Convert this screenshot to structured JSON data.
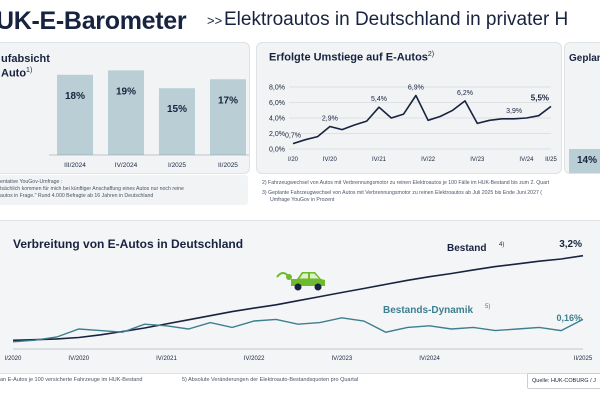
{
  "header": {
    "title": "UK-E-Barometer",
    "separator": ">>",
    "subtitle": "Elektroautos in Deutschland in privater H"
  },
  "panel_purchase": {
    "title_line1": "ufabsicht",
    "title_line2": "Auto",
    "title_sup": "1)"
  },
  "panel_switch": {
    "title": "Erfolgte Umstiege auf E-Autos",
    "title_sup": "2)"
  },
  "panel_planned": {
    "title": "Geplant",
    "value_label": "14%"
  },
  "panel_spread": {
    "title": "Verbreitung von E-Autos in Deutschland"
  },
  "notes": {
    "n1_line1": "entative YouGov-Umfrage :",
    "n1_line2": "tsächlich kommen für mich bei künftiger Anschaffung eines Autos nur noch reine",
    "n1_line3": "autos in Frage.\" Rund 4.000 Befragte ab 16 Jahren in Deutschland",
    "n2": "2)  Fahrzeugwechsel von Autos mit Verbrennungsmotor zu reinen Elektroautos je 100 Fälle im HUK-Bestand bis zum 2. Quart",
    "n3_line1": "3)  Geplante Fahrzeugwechsel von Autos mit Verbrennungsmotor zu reinen Elektroautos ab Juli 2025 bis Ende Juni 2027 (",
    "n3_line2": "Umfrage YouGov in Prozent"
  },
  "footer": {
    "f4": "an E-Autos je 100 versicherte Fahrzeuge im HUK-Bestand",
    "f5": "5) Absolute Veränderungen der Elektroauto-Bestandsquoten pro Quartal",
    "source": "Quelle: HUK-COBURG / J"
  },
  "colors": {
    "navy": "#17233f",
    "bar": "#b9cfd5",
    "teal": "#3d7f8f",
    "grid": "#c9cfd4",
    "green": "#6dbb2c"
  },
  "icons": [
    "car-plug-icon"
  ],
  "chart_data": [
    {
      "type": "bar",
      "title": "",
      "categories": [
        "III/2024",
        "IV/2024",
        "I/2025",
        "II/2025"
      ],
      "values": [
        18,
        19,
        15,
        17
      ],
      "value_labels": [
        "18%",
        "19%",
        "15%",
        "17%"
      ],
      "ylim": [
        0,
        22
      ]
    },
    {
      "type": "line",
      "title": "Erfolgte Umstiege auf E-Autos",
      "x_tick_labels": [
        "I/20",
        "IV/20",
        "IV/21",
        "IV/22",
        "IV/23",
        "IV/24",
        "II/25"
      ],
      "y_tick_labels": [
        "0,0%",
        "2,0%",
        "4,0%",
        "6,0%",
        "8,0%"
      ],
      "ylim": [
        0,
        8
      ],
      "grid": true,
      "series": [
        {
          "values": [
            0.7,
            1.2,
            1.6,
            2.9,
            2.5,
            3.1,
            3.6,
            5.4,
            4.0,
            4.5,
            6.9,
            3.7,
            4.2,
            5.0,
            6.2,
            3.3,
            3.7,
            3.9,
            3.9,
            4.0,
            4.3,
            5.5
          ],
          "annotations": [
            {
              "index": 0,
              "label": "0,7%"
            },
            {
              "index": 3,
              "label": "2,9%"
            },
            {
              "index": 7,
              "label": "5,4%"
            },
            {
              "index": 10,
              "label": "6,9%"
            },
            {
              "index": 14,
              "label": "6,2%"
            },
            {
              "index": 18,
              "label": "3,9%"
            },
            {
              "index": 21,
              "label": "5,5%"
            }
          ]
        }
      ]
    },
    {
      "type": "line",
      "title": "Verbreitung von E-Autos in Deutschland",
      "x_tick_labels": [
        "I/2020",
        "IV/2020",
        "IV/2021",
        "IV/2022",
        "IV/2023",
        "IV/2024",
        "II/2025"
      ],
      "series": [
        {
          "name": "Bestand",
          "name_sup": "4)",
          "end_label": "3,2%",
          "values": [
            0.1,
            0.12,
            0.15,
            0.2,
            0.3,
            0.42,
            0.55,
            0.7,
            0.85,
            1.0,
            1.15,
            1.28,
            1.4,
            1.55,
            1.7,
            1.85,
            2.0,
            2.15,
            2.3,
            2.43,
            2.55,
            2.68,
            2.8,
            2.9,
            3.0,
            3.08,
            3.2
          ]
        },
        {
          "name": "Bestands-Dynamik",
          "name_sup": "5)",
          "end_label": "0,16%",
          "values": [
            0.02,
            0.03,
            0.05,
            0.1,
            0.09,
            0.08,
            0.13,
            0.12,
            0.1,
            0.14,
            0.11,
            0.15,
            0.16,
            0.13,
            0.14,
            0.17,
            0.15,
            0.08,
            0.11,
            0.12,
            0.1,
            0.11,
            0.09,
            0.1,
            0.11,
            0.09,
            0.16
          ]
        }
      ]
    }
  ]
}
